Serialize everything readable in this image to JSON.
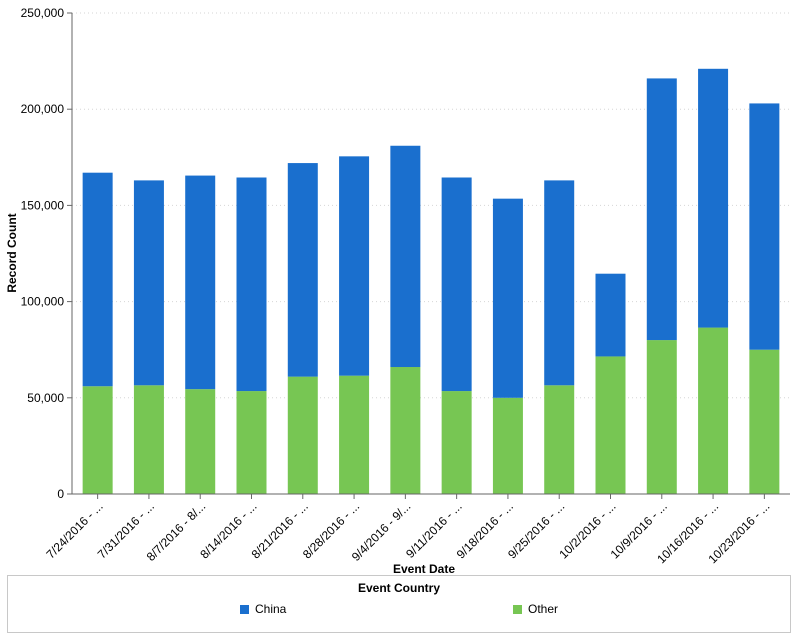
{
  "chart_data": {
    "type": "bar",
    "stacked": true,
    "xlabel": "Event Date",
    "ylabel": "Record Count",
    "ylim": [
      0,
      250000
    ],
    "yticks": [
      0,
      50000,
      100000,
      150000,
      200000,
      250000
    ],
    "ytick_labels": [
      "0",
      "50,000",
      "100,000",
      "150,000",
      "200,000",
      "250,000"
    ],
    "grid": true,
    "legend_position": "bottom",
    "legend_title": "Event Country",
    "categories": [
      "7/24/2016 - ...",
      "7/31/2016 - ...",
      "8/7/2016 - 8/...",
      "8/14/2016 - ...",
      "8/21/2016 - ...",
      "8/28/2016 - ...",
      "9/4/2016 - 9/...",
      "9/11/2016 - ...",
      "9/18/2016 - ...",
      "9/25/2016 - ...",
      "10/2/2016 - ...",
      "10/9/2016 - ...",
      "10/16/2016 - ...",
      "10/23/2016 - ..."
    ],
    "series": [
      {
        "name": "Other",
        "color": "#77c653",
        "values": [
          56000,
          56500,
          54500,
          53500,
          61000,
          61500,
          66000,
          53500,
          50000,
          56500,
          71500,
          80000,
          86500,
          75000
        ]
      },
      {
        "name": "China",
        "color": "#1a6fce",
        "values": [
          111000,
          106500,
          111000,
          111000,
          111000,
          114000,
          115000,
          111000,
          103500,
          106500,
          43000,
          136000,
          134500,
          128000
        ]
      }
    ]
  }
}
